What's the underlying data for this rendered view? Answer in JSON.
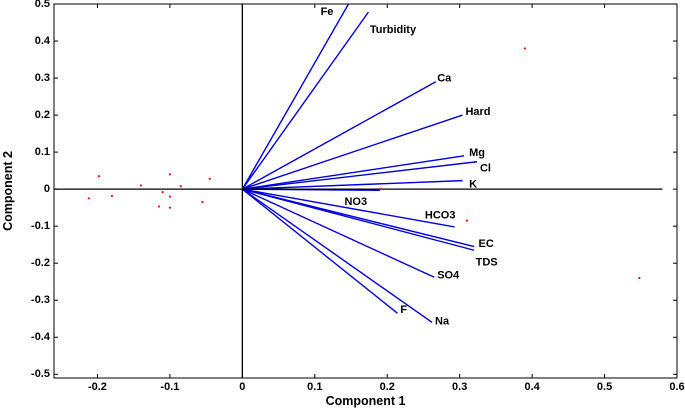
{
  "chart_data": {
    "type": "scatter",
    "subtype": "pca-biplot",
    "title": "",
    "xlabel": "Component 1",
    "ylabel": "Component 2",
    "xlim": [
      -0.26,
      0.6
    ],
    "ylim": [
      -0.51,
      0.5
    ],
    "xticks": [
      -0.2,
      -0.1,
      0,
      0.1,
      0.2,
      0.3,
      0.4,
      0.5,
      0.6
    ],
    "xtick_labels": [
      "-0.2",
      "-0.1",
      "0",
      "0.1",
      "0.2",
      "0.3",
      "0.4",
      "0.5",
      "0.6"
    ],
    "yticks": [
      -0.5,
      -0.4,
      -0.3,
      -0.2,
      -0.1,
      0,
      0.1,
      0.2,
      0.3,
      0.4,
      0.5
    ],
    "ytick_labels": [
      "-0.5",
      "-0.4",
      "-0.3",
      "-0.2",
      "-0.1",
      "0",
      "0.1",
      "0.2",
      "0.3",
      "0.4",
      "0.5"
    ],
    "grid": false,
    "vector_color": "#0000dd",
    "point_color": "#ff0000",
    "axis_color": "#000000",
    "loadings": [
      {
        "name": "Fe",
        "x": 0.148,
        "y": 0.505,
        "label_x": 0.108,
        "label_y": 0.478
      },
      {
        "name": "Turbidity",
        "x": 0.174,
        "y": 0.478,
        "label_x": 0.176,
        "label_y": 0.43
      },
      {
        "name": "Ca",
        "x": 0.267,
        "y": 0.29,
        "label_x": 0.269,
        "label_y": 0.298
      },
      {
        "name": "Hard",
        "x": 0.304,
        "y": 0.2,
        "label_x": 0.308,
        "label_y": 0.208
      },
      {
        "name": "Mg",
        "x": 0.306,
        "y": 0.09,
        "label_x": 0.313,
        "label_y": 0.098
      },
      {
        "name": "Cl",
        "x": 0.324,
        "y": 0.074,
        "label_x": 0.328,
        "label_y": 0.055
      },
      {
        "name": "K",
        "x": 0.304,
        "y": 0.023,
        "label_x": 0.313,
        "label_y": 0.012
      },
      {
        "name": "NO3",
        "x": 0.19,
        "y": -0.003,
        "label_x": 0.141,
        "label_y": -0.035
      },
      {
        "name": "HCO3",
        "x": 0.293,
        "y": -0.102,
        "label_x": 0.252,
        "label_y": -0.072
      },
      {
        "name": "EC",
        "x": 0.32,
        "y": -0.155,
        "label_x": 0.326,
        "label_y": -0.148
      },
      {
        "name": "TDS",
        "x": 0.32,
        "y": -0.165,
        "label_x": 0.322,
        "label_y": -0.198
      },
      {
        "name": "SO4",
        "x": 0.265,
        "y": -0.238,
        "label_x": 0.269,
        "label_y": -0.233
      },
      {
        "name": "F",
        "x": 0.214,
        "y": -0.335,
        "label_x": 0.218,
        "label_y": -0.327
      },
      {
        "name": "Na",
        "x": 0.262,
        "y": -0.36,
        "label_x": 0.266,
        "label_y": -0.357
      }
    ],
    "scores": [
      {
        "x": -0.212,
        "y": -0.025
      },
      {
        "x": -0.198,
        "y": 0.035
      },
      {
        "x": -0.18,
        "y": -0.018
      },
      {
        "x": -0.14,
        "y": 0.01
      },
      {
        "x": -0.115,
        "y": -0.047
      },
      {
        "x": -0.11,
        "y": -0.008
      },
      {
        "x": -0.1,
        "y": 0.04
      },
      {
        "x": -0.1,
        "y": -0.02
      },
      {
        "x": -0.1,
        "y": -0.05
      },
      {
        "x": -0.085,
        "y": 0.008
      },
      {
        "x": -0.055,
        "y": -0.035
      },
      {
        "x": -0.045,
        "y": 0.028
      },
      {
        "x": 0.19,
        "y": 0.0
      },
      {
        "x": 0.31,
        "y": -0.085
      },
      {
        "x": 0.39,
        "y": 0.38
      },
      {
        "x": 0.548,
        "y": -0.24
      }
    ]
  }
}
